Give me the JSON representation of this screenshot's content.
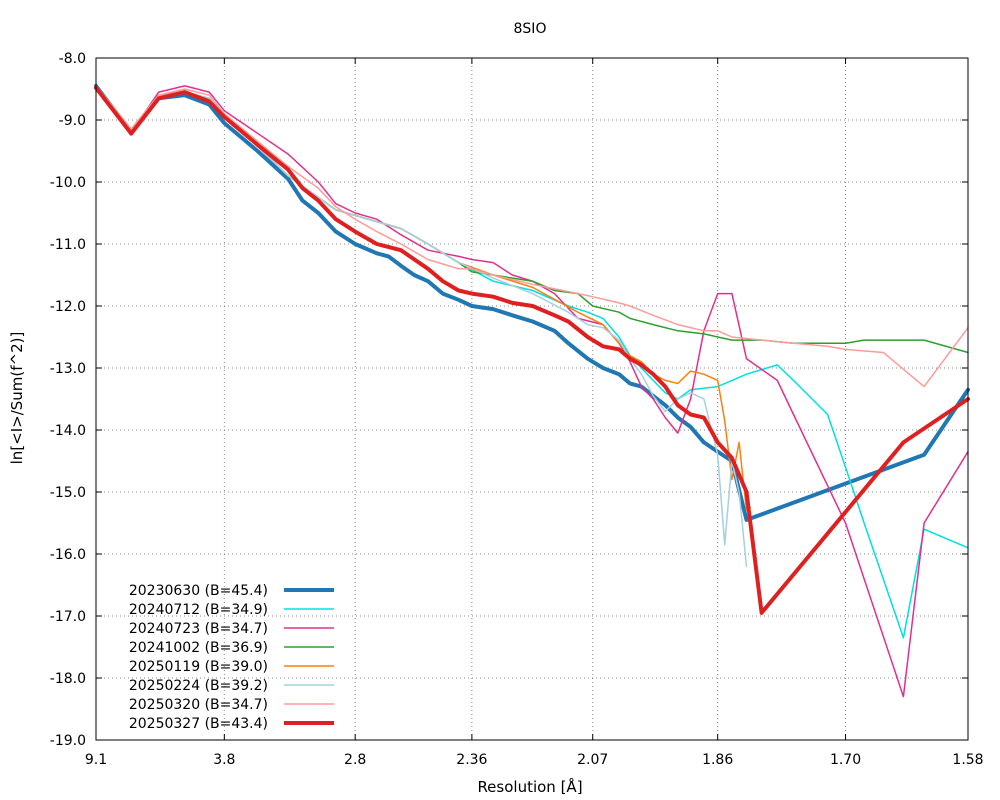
{
  "chart_data": {
    "type": "line",
    "title": "8SIO",
    "xlabel": "Resolution [Å]",
    "ylabel": "ln[<I>/Sum(f^2)]",
    "x_scale": "inverse-square resolution (1/d^2)",
    "x_ticks": [
      {
        "d": 9.1,
        "label": "9.1"
      },
      {
        "d": 3.8,
        "label": "3.8"
      },
      {
        "d": 2.8,
        "label": "2.8"
      },
      {
        "d": 2.36,
        "label": "2.36"
      },
      {
        "d": 2.07,
        "label": "2.07"
      },
      {
        "d": 1.86,
        "label": "1.86"
      },
      {
        "d": 1.7,
        "label": "1.70"
      },
      {
        "d": 1.58,
        "label": "1.58"
      }
    ],
    "xlim": [
      9.1,
      1.58
    ],
    "ylim": [
      -19.0,
      -8.0
    ],
    "y_ticks": [
      -8.0,
      -9.0,
      -10.0,
      -11.0,
      -12.0,
      -13.0,
      -14.0,
      -15.0,
      -16.0,
      -17.0,
      -18.0,
      -19.0
    ],
    "y_tick_labels": [
      "-8.0",
      "-9.0",
      "-10.0",
      "-11.0",
      "-12.0",
      "-13.0",
      "-14.0",
      "-15.0",
      "-16.0",
      "-17.0",
      "-18.0",
      "-19.0"
    ],
    "grid": true,
    "legend_position": "bottom-left",
    "series": [
      {
        "name": "20230630 (B=45.4)",
        "color": "#1f77b4",
        "width": 4,
        "points": [
          [
            9.1,
            -8.45
          ],
          [
            6.0,
            -9.2
          ],
          [
            5.0,
            -8.65
          ],
          [
            4.4,
            -8.6
          ],
          [
            4.0,
            -8.75
          ],
          [
            3.8,
            -9.05
          ],
          [
            3.45,
            -9.5
          ],
          [
            3.2,
            -9.95
          ],
          [
            3.1,
            -10.3
          ],
          [
            3.0,
            -10.5
          ],
          [
            2.9,
            -10.8
          ],
          [
            2.8,
            -11.0
          ],
          [
            2.7,
            -11.15
          ],
          [
            2.65,
            -11.2
          ],
          [
            2.6,
            -11.35
          ],
          [
            2.55,
            -11.5
          ],
          [
            2.5,
            -11.6
          ],
          [
            2.45,
            -11.8
          ],
          [
            2.4,
            -11.9
          ],
          [
            2.36,
            -12.0
          ],
          [
            2.3,
            -12.05
          ],
          [
            2.25,
            -12.15
          ],
          [
            2.2,
            -12.25
          ],
          [
            2.15,
            -12.4
          ],
          [
            2.12,
            -12.6
          ],
          [
            2.08,
            -12.85
          ],
          [
            2.05,
            -13.0
          ],
          [
            2.02,
            -13.1
          ],
          [
            2.0,
            -13.25
          ],
          [
            1.98,
            -13.3
          ],
          [
            1.96,
            -13.45
          ],
          [
            1.94,
            -13.6
          ],
          [
            1.92,
            -13.8
          ],
          [
            1.9,
            -13.95
          ],
          [
            1.88,
            -14.2
          ],
          [
            1.86,
            -14.35
          ],
          [
            1.84,
            -14.5
          ],
          [
            1.82,
            -15.45
          ],
          [
            1.62,
            -14.4
          ],
          [
            1.58,
            -13.35
          ]
        ]
      },
      {
        "name": "20240712 (B=34.9)",
        "color": "#00e0e0",
        "width": 1.5,
        "points": [
          [
            9.1,
            -8.45
          ],
          [
            6.0,
            -9.15
          ],
          [
            5.0,
            -8.6
          ],
          [
            4.4,
            -8.55
          ],
          [
            4.0,
            -8.65
          ],
          [
            3.8,
            -8.9
          ],
          [
            3.2,
            -9.9
          ],
          [
            2.9,
            -10.45
          ],
          [
            2.6,
            -10.75
          ],
          [
            2.5,
            -11.0
          ],
          [
            2.4,
            -11.3
          ],
          [
            2.3,
            -11.6
          ],
          [
            2.2,
            -11.75
          ],
          [
            2.12,
            -12.0
          ],
          [
            2.08,
            -12.1
          ],
          [
            2.05,
            -12.2
          ],
          [
            2.02,
            -12.5
          ],
          [
            2.0,
            -12.8
          ],
          [
            1.98,
            -13.0
          ],
          [
            1.96,
            -13.2
          ],
          [
            1.94,
            -13.4
          ],
          [
            1.92,
            -13.5
          ],
          [
            1.9,
            -13.35
          ],
          [
            1.86,
            -13.3
          ],
          [
            1.82,
            -13.1
          ],
          [
            1.78,
            -12.95
          ],
          [
            1.76,
            -13.2
          ],
          [
            1.72,
            -13.75
          ],
          [
            1.7,
            -14.6
          ],
          [
            1.68,
            -15.5
          ],
          [
            1.64,
            -17.35
          ],
          [
            1.62,
            -15.6
          ],
          [
            1.58,
            -15.9
          ]
        ]
      },
      {
        "name": "20240723 (B=34.7)",
        "color": "#e0308f",
        "width": 1.5,
        "points": [
          [
            9.1,
            -8.45
          ],
          [
            6.0,
            -9.2
          ],
          [
            5.0,
            -8.55
          ],
          [
            4.4,
            -8.45
          ],
          [
            4.0,
            -8.55
          ],
          [
            3.8,
            -8.85
          ],
          [
            3.2,
            -9.55
          ],
          [
            3.0,
            -10.0
          ],
          [
            2.9,
            -10.35
          ],
          [
            2.8,
            -10.5
          ],
          [
            2.7,
            -10.6
          ],
          [
            2.6,
            -10.85
          ],
          [
            2.5,
            -11.1
          ],
          [
            2.4,
            -11.2
          ],
          [
            2.36,
            -11.25
          ],
          [
            2.3,
            -11.3
          ],
          [
            2.25,
            -11.5
          ],
          [
            2.2,
            -11.6
          ],
          [
            2.15,
            -11.8
          ],
          [
            2.1,
            -12.2
          ],
          [
            2.05,
            -12.3
          ],
          [
            2.02,
            -12.6
          ],
          [
            2.0,
            -12.9
          ],
          [
            1.98,
            -13.3
          ],
          [
            1.96,
            -13.5
          ],
          [
            1.94,
            -13.8
          ],
          [
            1.92,
            -14.05
          ],
          [
            1.9,
            -13.5
          ],
          [
            1.88,
            -12.4
          ],
          [
            1.86,
            -11.8
          ],
          [
            1.84,
            -11.8
          ],
          [
            1.82,
            -12.85
          ],
          [
            1.78,
            -13.2
          ],
          [
            1.76,
            -13.75
          ],
          [
            1.7,
            -15.5
          ],
          [
            1.64,
            -18.3
          ],
          [
            1.62,
            -15.5
          ],
          [
            1.58,
            -14.35
          ]
        ]
      },
      {
        "name": "20241002 (B=36.9)",
        "color": "#2ca02c",
        "width": 1.5,
        "points": [
          [
            9.1,
            -8.45
          ],
          [
            6.0,
            -9.15
          ],
          [
            5.0,
            -8.6
          ],
          [
            4.4,
            -8.55
          ],
          [
            4.0,
            -8.65
          ],
          [
            3.8,
            -8.9
          ],
          [
            3.2,
            -9.9
          ],
          [
            2.9,
            -10.45
          ],
          [
            2.6,
            -10.75
          ],
          [
            2.5,
            -11.0
          ],
          [
            2.4,
            -11.3
          ],
          [
            2.36,
            -11.45
          ],
          [
            2.3,
            -11.5
          ],
          [
            2.2,
            -11.6
          ],
          [
            2.15,
            -11.75
          ],
          [
            2.1,
            -11.8
          ],
          [
            2.07,
            -12.0
          ],
          [
            2.02,
            -12.1
          ],
          [
            2.0,
            -12.2
          ],
          [
            1.96,
            -12.3
          ],
          [
            1.92,
            -12.4
          ],
          [
            1.88,
            -12.45
          ],
          [
            1.84,
            -12.55
          ],
          [
            1.8,
            -12.55
          ],
          [
            1.76,
            -12.6
          ],
          [
            1.72,
            -12.6
          ],
          [
            1.7,
            -12.6
          ],
          [
            1.68,
            -12.55
          ],
          [
            1.64,
            -12.55
          ],
          [
            1.62,
            -12.55
          ],
          [
            1.58,
            -12.75
          ]
        ]
      },
      {
        "name": "20250119 (B=39.0)",
        "color": "#ff7f0e",
        "width": 1.5,
        "points": [
          [
            9.1,
            -8.45
          ],
          [
            6.0,
            -9.15
          ],
          [
            5.0,
            -8.6
          ],
          [
            4.4,
            -8.55
          ],
          [
            4.0,
            -8.65
          ],
          [
            3.8,
            -8.9
          ],
          [
            3.2,
            -9.9
          ],
          [
            2.9,
            -10.45
          ],
          [
            2.6,
            -10.75
          ],
          [
            2.5,
            -11.0
          ],
          [
            2.4,
            -11.3
          ],
          [
            2.3,
            -11.5
          ],
          [
            2.2,
            -11.7
          ],
          [
            2.1,
            -12.1
          ],
          [
            2.05,
            -12.3
          ],
          [
            2.02,
            -12.6
          ],
          [
            2.0,
            -12.8
          ],
          [
            1.98,
            -12.9
          ],
          [
            1.96,
            -13.1
          ],
          [
            1.94,
            -13.2
          ],
          [
            1.92,
            -13.25
          ],
          [
            1.9,
            -13.05
          ],
          [
            1.88,
            -13.1
          ],
          [
            1.86,
            -13.2
          ],
          [
            1.85,
            -13.85
          ],
          [
            1.84,
            -14.8
          ],
          [
            1.83,
            -14.2
          ],
          [
            1.82,
            -15.3
          ],
          [
            1.815,
            -15.25
          ]
        ]
      },
      {
        "name": "20250224 (B=39.2)",
        "color": "#a6cfe0",
        "width": 1.5,
        "points": [
          [
            9.1,
            -8.45
          ],
          [
            6.0,
            -9.15
          ],
          [
            5.0,
            -8.6
          ],
          [
            4.4,
            -8.55
          ],
          [
            4.0,
            -8.65
          ],
          [
            3.8,
            -8.9
          ],
          [
            3.2,
            -9.9
          ],
          [
            2.9,
            -10.45
          ],
          [
            2.6,
            -10.75
          ],
          [
            2.5,
            -11.0
          ],
          [
            2.4,
            -11.3
          ],
          [
            2.3,
            -11.55
          ],
          [
            2.2,
            -11.8
          ],
          [
            2.12,
            -12.1
          ],
          [
            2.08,
            -12.3
          ],
          [
            2.05,
            -12.35
          ],
          [
            2.02,
            -12.55
          ],
          [
            2.0,
            -12.85
          ],
          [
            1.98,
            -13.1
          ],
          [
            1.96,
            -13.45
          ],
          [
            1.94,
            -13.7
          ],
          [
            1.92,
            -13.5
          ],
          [
            1.9,
            -13.4
          ],
          [
            1.88,
            -13.5
          ],
          [
            1.86,
            -14.4
          ],
          [
            1.85,
            -15.85
          ],
          [
            1.84,
            -14.5
          ],
          [
            1.83,
            -15.0
          ],
          [
            1.82,
            -16.2
          ]
        ]
      },
      {
        "name": "20250320 (B=34.7)",
        "color": "#ff9a9a",
        "width": 1.5,
        "points": [
          [
            9.1,
            -8.45
          ],
          [
            6.0,
            -9.15
          ],
          [
            5.0,
            -8.6
          ],
          [
            4.4,
            -8.5
          ],
          [
            4.0,
            -8.6
          ],
          [
            3.8,
            -8.9
          ],
          [
            3.2,
            -9.75
          ],
          [
            3.0,
            -10.1
          ],
          [
            2.9,
            -10.4
          ],
          [
            2.8,
            -10.6
          ],
          [
            2.7,
            -10.8
          ],
          [
            2.6,
            -11.0
          ],
          [
            2.5,
            -11.25
          ],
          [
            2.4,
            -11.4
          ],
          [
            2.36,
            -11.4
          ],
          [
            2.3,
            -11.5
          ],
          [
            2.2,
            -11.65
          ],
          [
            2.1,
            -11.8
          ],
          [
            2.07,
            -11.85
          ],
          [
            2.02,
            -11.95
          ],
          [
            2.0,
            -12.0
          ],
          [
            1.96,
            -12.15
          ],
          [
            1.92,
            -12.3
          ],
          [
            1.88,
            -12.4
          ],
          [
            1.86,
            -12.4
          ],
          [
            1.84,
            -12.5
          ],
          [
            1.8,
            -12.55
          ],
          [
            1.76,
            -12.6
          ],
          [
            1.72,
            -12.65
          ],
          [
            1.7,
            -12.7
          ],
          [
            1.66,
            -12.75
          ],
          [
            1.62,
            -13.3
          ],
          [
            1.58,
            -12.35
          ]
        ]
      },
      {
        "name": "20250327 (B=43.4)",
        "color": "#e02020",
        "width": 4,
        "points": [
          [
            9.1,
            -8.48
          ],
          [
            6.0,
            -9.22
          ],
          [
            5.0,
            -8.65
          ],
          [
            4.4,
            -8.55
          ],
          [
            4.0,
            -8.7
          ],
          [
            3.8,
            -8.95
          ],
          [
            3.45,
            -9.4
          ],
          [
            3.2,
            -9.8
          ],
          [
            3.1,
            -10.1
          ],
          [
            3.0,
            -10.3
          ],
          [
            2.9,
            -10.6
          ],
          [
            2.8,
            -10.8
          ],
          [
            2.7,
            -11.0
          ],
          [
            2.6,
            -11.1
          ],
          [
            2.5,
            -11.4
          ],
          [
            2.45,
            -11.6
          ],
          [
            2.4,
            -11.75
          ],
          [
            2.36,
            -11.8
          ],
          [
            2.3,
            -11.85
          ],
          [
            2.25,
            -11.95
          ],
          [
            2.2,
            -12.0
          ],
          [
            2.15,
            -12.15
          ],
          [
            2.12,
            -12.25
          ],
          [
            2.08,
            -12.5
          ],
          [
            2.05,
            -12.65
          ],
          [
            2.02,
            -12.7
          ],
          [
            2.0,
            -12.85
          ],
          [
            1.98,
            -12.95
          ],
          [
            1.96,
            -13.1
          ],
          [
            1.94,
            -13.3
          ],
          [
            1.92,
            -13.6
          ],
          [
            1.9,
            -13.75
          ],
          [
            1.88,
            -13.8
          ],
          [
            1.86,
            -14.2
          ],
          [
            1.84,
            -14.45
          ],
          [
            1.82,
            -15.0
          ],
          [
            1.8,
            -16.95
          ],
          [
            1.64,
            -14.2
          ],
          [
            1.58,
            -13.5
          ]
        ]
      }
    ]
  }
}
